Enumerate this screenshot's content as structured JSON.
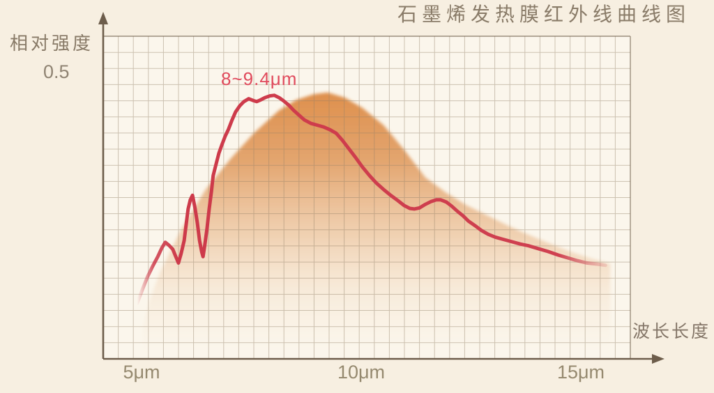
{
  "chart": {
    "title": "石墨烯发热膜红外线曲线图",
    "y_axis": {
      "label": "相对强度",
      "tick": "0.5"
    },
    "x_axis": {
      "label": "波长长度",
      "ticks": [
        {
          "label": "5μm",
          "um": 5
        },
        {
          "label": "10μm",
          "um": 10
        },
        {
          "label": "15μm",
          "um": 15
        }
      ]
    },
    "annotation": "8~9.4μm",
    "colors": {
      "background": "#f7efe1",
      "curve": "#cd3a4a",
      "annotation_text": "#e04a5c",
      "heading_text": "#897b68",
      "tick_text": "#95896f",
      "axis": "#6d5d4b",
      "grid_line": "rgba(146,128,104,0.45)",
      "grid_border": "rgba(116,100,80,0.7)",
      "mound_top": "#dd8a44"
    }
  },
  "chart_data": {
    "type": "line",
    "title": "石墨烯发热膜红外线曲线图",
    "xlabel": "波长长度",
    "ylabel": "相对强度",
    "x_unit": "μm",
    "x_ticks": [
      5,
      10,
      15
    ],
    "y_tick_value": 0.5,
    "ylim": [
      0,
      0.56
    ],
    "xlim": [
      4.1,
      16.1
    ],
    "grid": true,
    "annotation": {
      "text": "8~9.4μm",
      "x_um": 6.9,
      "y_intensity": 0.5
    },
    "series": [
      {
        "name": "infrared-intensity-curve",
        "type": "line",
        "color": "#cd3a4a",
        "points": [
          [
            4.9,
            0.097
          ],
          [
            5.02,
            0.121
          ],
          [
            5.13,
            0.142
          ],
          [
            5.25,
            0.161
          ],
          [
            5.37,
            0.178
          ],
          [
            5.46,
            0.193
          ],
          [
            5.54,
            0.203
          ],
          [
            5.62,
            0.198
          ],
          [
            5.71,
            0.191
          ],
          [
            5.78,
            0.178
          ],
          [
            5.84,
            0.167
          ],
          [
            5.9,
            0.183
          ],
          [
            5.97,
            0.206
          ],
          [
            6.02,
            0.237
          ],
          [
            6.06,
            0.261
          ],
          [
            6.11,
            0.277
          ],
          [
            6.16,
            0.285
          ],
          [
            6.22,
            0.261
          ],
          [
            6.27,
            0.237
          ],
          [
            6.32,
            0.206
          ],
          [
            6.37,
            0.186
          ],
          [
            6.4,
            0.178
          ],
          [
            6.44,
            0.198
          ],
          [
            6.49,
            0.227
          ],
          [
            6.54,
            0.261
          ],
          [
            6.59,
            0.291
          ],
          [
            6.63,
            0.319
          ],
          [
            6.7,
            0.34
          ],
          [
            6.76,
            0.358
          ],
          [
            6.83,
            0.373
          ],
          [
            6.9,
            0.387
          ],
          [
            6.98,
            0.4
          ],
          [
            7.06,
            0.416
          ],
          [
            7.14,
            0.43
          ],
          [
            7.24,
            0.441
          ],
          [
            7.33,
            0.448
          ],
          [
            7.44,
            0.453
          ],
          [
            7.54,
            0.45
          ],
          [
            7.62,
            0.448
          ],
          [
            7.71,
            0.451
          ],
          [
            7.81,
            0.455
          ],
          [
            7.92,
            0.458
          ],
          [
            8.02,
            0.459
          ],
          [
            8.13,
            0.455
          ],
          [
            8.24,
            0.449
          ],
          [
            8.35,
            0.442
          ],
          [
            8.46,
            0.433
          ],
          [
            8.59,
            0.424
          ],
          [
            8.71,
            0.416
          ],
          [
            8.86,
            0.41
          ],
          [
            9.0,
            0.407
          ],
          [
            9.14,
            0.404
          ],
          [
            9.29,
            0.399
          ],
          [
            9.43,
            0.393
          ],
          [
            9.57,
            0.381
          ],
          [
            9.71,
            0.367
          ],
          [
            9.87,
            0.351
          ],
          [
            10.03,
            0.334
          ],
          [
            10.19,
            0.319
          ],
          [
            10.35,
            0.306
          ],
          [
            10.51,
            0.295
          ],
          [
            10.67,
            0.285
          ],
          [
            10.83,
            0.276
          ],
          [
            10.98,
            0.267
          ],
          [
            11.11,
            0.262
          ],
          [
            11.21,
            0.261
          ],
          [
            11.33,
            0.263
          ],
          [
            11.46,
            0.269
          ],
          [
            11.59,
            0.274
          ],
          [
            11.71,
            0.277
          ],
          [
            11.81,
            0.277
          ],
          [
            11.94,
            0.273
          ],
          [
            12.06,
            0.266
          ],
          [
            12.19,
            0.257
          ],
          [
            12.32,
            0.249
          ],
          [
            12.44,
            0.24
          ],
          [
            12.59,
            0.232
          ],
          [
            12.73,
            0.224
          ],
          [
            12.89,
            0.217
          ],
          [
            13.05,
            0.212
          ],
          [
            13.24,
            0.208
          ],
          [
            13.43,
            0.204
          ],
          [
            13.62,
            0.2
          ],
          [
            13.81,
            0.197
          ],
          [
            14.03,
            0.192
          ],
          [
            14.25,
            0.187
          ],
          [
            14.48,
            0.181
          ],
          [
            14.7,
            0.176
          ],
          [
            14.92,
            0.171
          ],
          [
            15.14,
            0.167
          ],
          [
            15.37,
            0.165
          ],
          [
            15.56,
            0.163
          ]
        ]
      },
      {
        "name": "background-emission-envelope",
        "type": "area",
        "color": "#dd8a44",
        "points": [
          [
            5.03,
            0.055
          ],
          [
            5.19,
            0.103
          ],
          [
            5.43,
            0.152
          ],
          [
            5.9,
            0.225
          ],
          [
            6.46,
            0.295
          ],
          [
            7.02,
            0.348
          ],
          [
            7.57,
            0.394
          ],
          [
            8.13,
            0.433
          ],
          [
            8.52,
            0.451
          ],
          [
            8.92,
            0.461
          ],
          [
            9.24,
            0.464
          ],
          [
            9.63,
            0.455
          ],
          [
            10.03,
            0.437
          ],
          [
            10.51,
            0.407
          ],
          [
            10.98,
            0.364
          ],
          [
            11.46,
            0.316
          ],
          [
            11.94,
            0.289
          ],
          [
            12.41,
            0.267
          ],
          [
            12.89,
            0.249
          ],
          [
            13.37,
            0.231
          ],
          [
            13.84,
            0.215
          ],
          [
            14.32,
            0.2
          ],
          [
            14.79,
            0.186
          ],
          [
            15.27,
            0.174
          ],
          [
            15.67,
            0.166
          ]
        ]
      }
    ]
  }
}
